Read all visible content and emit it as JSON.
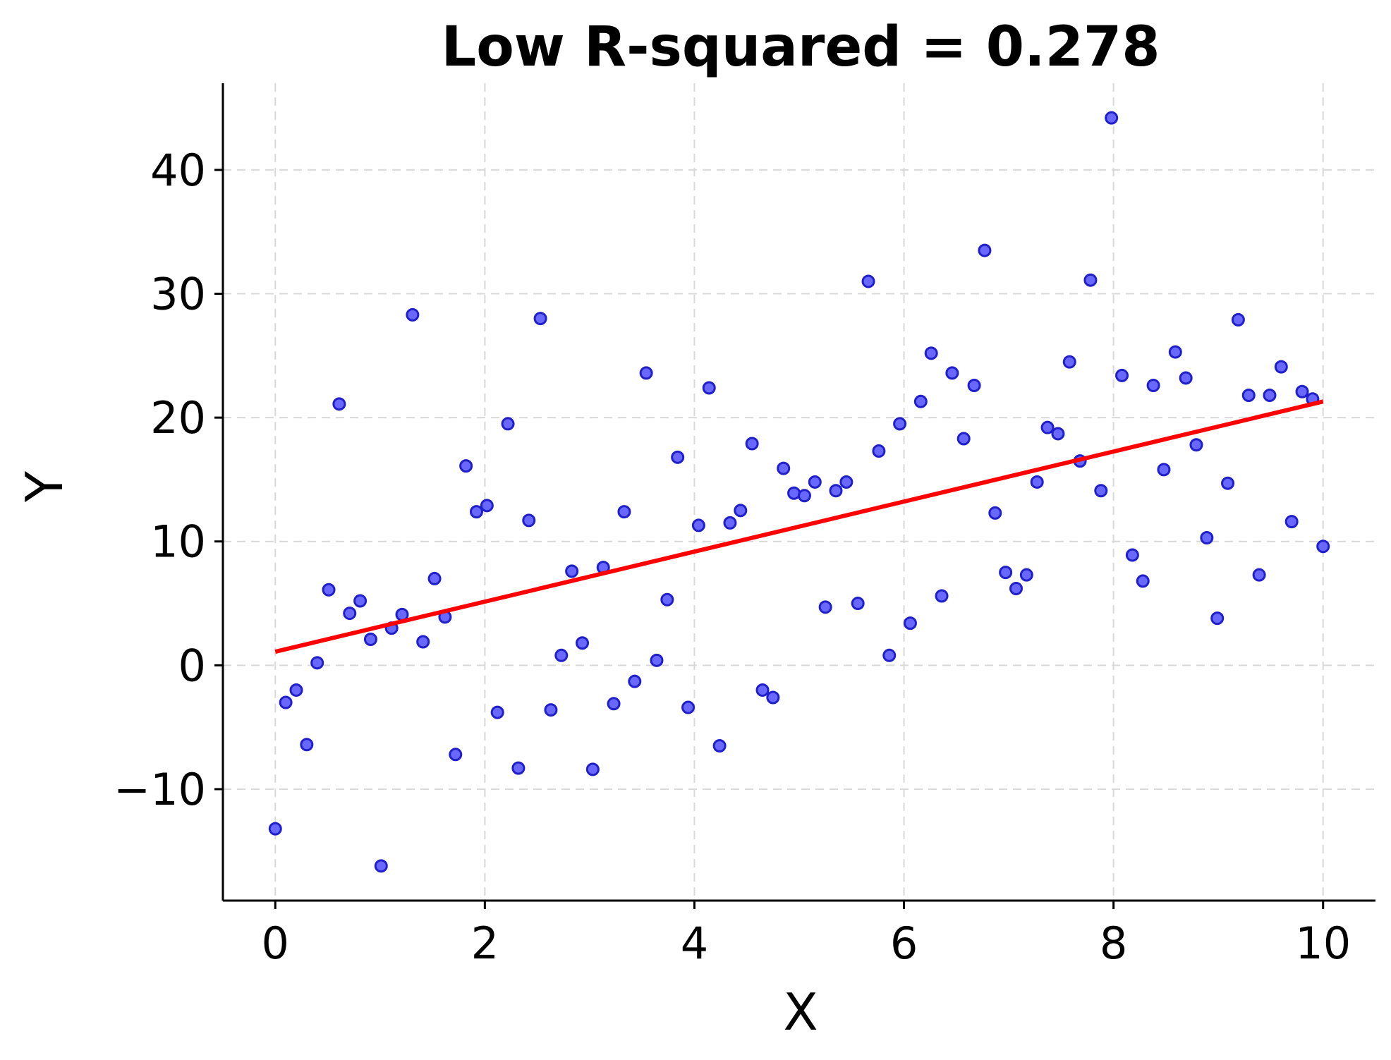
{
  "chart_data": {
    "type": "scatter",
    "title": "Low R-squared = 0.278",
    "xlabel": "X",
    "ylabel": "Y",
    "xlim": [
      -0.5,
      10.5
    ],
    "ylim": [
      -19,
      47
    ],
    "xticks": [
      0,
      2,
      4,
      6,
      8,
      10
    ],
    "xtick_labels": [
      "0",
      "2",
      "4",
      "6",
      "8",
      "10"
    ],
    "yticks": [
      -10,
      0,
      10,
      20,
      30,
      40
    ],
    "ytick_labels": [
      "−10",
      "0",
      "10",
      "20",
      "30",
      "40"
    ],
    "grid": true,
    "colors": {
      "points": "#4d4dff",
      "fit_line": "#ff0000"
    },
    "fit_line": {
      "x": [
        0,
        10
      ],
      "y": [
        1.1,
        21.3
      ]
    },
    "points": {
      "x": [
        0.0,
        0.1,
        0.2,
        0.3,
        0.4,
        0.51,
        0.61,
        0.71,
        0.81,
        0.91,
        1.01,
        1.11,
        1.21,
        1.31,
        1.41,
        1.52,
        1.62,
        1.72,
        1.82,
        1.92,
        2.02,
        2.12,
        2.22,
        2.32,
        2.42,
        2.53,
        2.63,
        2.73,
        2.83,
        2.93,
        3.03,
        3.13,
        3.23,
        3.33,
        3.43,
        3.54,
        3.64,
        3.74,
        3.84,
        3.94,
        4.04,
        4.14,
        4.24,
        4.34,
        4.44,
        4.55,
        4.65,
        4.75,
        4.85,
        4.95,
        5.05,
        5.15,
        5.25,
        5.35,
        5.45,
        5.56,
        5.66,
        5.76,
        5.86,
        5.96,
        6.06,
        6.16,
        6.26,
        6.36,
        6.46,
        6.57,
        6.67,
        6.77,
        6.87,
        6.97,
        7.07,
        7.17,
        7.27,
        7.37,
        7.47,
        7.58,
        7.68,
        7.78,
        7.88,
        7.98,
        8.08,
        8.18,
        8.28,
        8.38,
        8.48,
        8.59,
        8.69,
        8.79,
        8.89,
        8.99,
        9.09,
        9.19,
        9.29,
        9.39,
        9.49,
        9.6,
        9.7,
        9.8,
        9.9,
        10.0
      ],
      "y": [
        -13.2,
        -3.0,
        -2.0,
        -6.4,
        0.2,
        6.1,
        21.1,
        4.2,
        5.2,
        2.1,
        -16.2,
        3.0,
        4.1,
        28.3,
        1.9,
        7.0,
        3.9,
        -7.2,
        16.1,
        12.4,
        12.9,
        -3.8,
        19.5,
        -8.3,
        11.7,
        28.0,
        -3.6,
        0.8,
        7.6,
        1.8,
        -8.4,
        7.9,
        -3.1,
        12.4,
        -1.3,
        23.6,
        0.4,
        5.3,
        16.8,
        -3.4,
        11.3,
        22.4,
        -6.5,
        11.5,
        12.5,
        17.9,
        -2.0,
        -2.6,
        15.9,
        13.9,
        13.7,
        14.8,
        4.7,
        14.1,
        14.8,
        5.0,
        31.0,
        17.3,
        0.8,
        19.5,
        3.4,
        21.3,
        25.2,
        5.6,
        23.6,
        18.3,
        22.6,
        33.5,
        12.3,
        7.5,
        6.2,
        7.3,
        14.8,
        19.2,
        18.7,
        24.5,
        16.5,
        31.1,
        14.1,
        44.2,
        23.4,
        8.9,
        6.8,
        22.6,
        15.8,
        25.3,
        23.2,
        17.8,
        10.3,
        3.8,
        14.7,
        27.9,
        21.8,
        7.3,
        21.8,
        24.1,
        11.6,
        22.1,
        21.5,
        9.6
      ]
    }
  }
}
